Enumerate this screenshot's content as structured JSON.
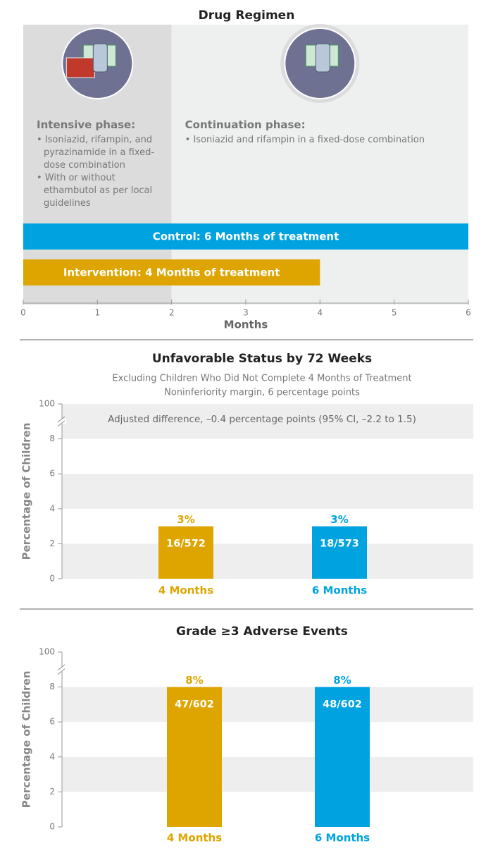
{
  "chart_data": [
    {
      "type": "timeline",
      "title": "Drug Regimen",
      "phases": [
        {
          "title": "Intensive phase:",
          "items": [
            "Isoniazid, rifampin, and pyrazinamide in a fixed-dose combination",
            "With or without ethambutol as per local guidelines"
          ],
          "start": 0,
          "end": 2,
          "color": "#dcdcdd"
        },
        {
          "title": "Continuation phase:",
          "items": [
            "Isoniazid and rifampin in a fixed-dose combination"
          ],
          "start": 2,
          "end": 6,
          "color": "#eef0ef"
        }
      ],
      "categories": [
        "Control: 6 Months of treatment",
        "Intervention: 4 Months of treatment"
      ],
      "values": [
        6,
        4
      ],
      "colors": [
        "#00a3e0",
        "#dea500"
      ],
      "xlim": [
        0,
        6
      ],
      "xticks": [
        0,
        1,
        2,
        3,
        4,
        5,
        6
      ],
      "xlabel": "Months"
    },
    {
      "type": "bar",
      "title": "Unfavorable Status by 72 Weeks",
      "subtitle": [
        "Excluding Children Who Did Not Complete 4 Months of Treatment",
        "Noninferiority margin, 6 percentage points"
      ],
      "annotation": "Adjusted difference, –0.4 percentage points (95% CI, –2.2 to 1.5)",
      "ylabel": "Percentage of Children",
      "categories": [
        "4 Months",
        "6 Months"
      ],
      "values": [
        3,
        3
      ],
      "value_labels": [
        "3%",
        "3%"
      ],
      "counts": [
        "16/572",
        "18/573"
      ],
      "colors": [
        "#dea500",
        "#00a3e0"
      ],
      "ylim": [
        0,
        100
      ],
      "yticks": [
        0,
        2,
        4,
        6,
        8,
        100
      ],
      "axis_break": true
    },
    {
      "type": "bar",
      "title": "Grade ≥3 Adverse Events",
      "ylabel": "Percentage of Children",
      "categories": [
        "4 Months",
        "6 Months"
      ],
      "values": [
        8,
        8
      ],
      "value_labels": [
        "8%",
        "8%"
      ],
      "counts": [
        "47/602",
        "48/602"
      ],
      "colors": [
        "#dea500",
        "#00a3e0"
      ],
      "ylim": [
        0,
        100
      ],
      "yticks": [
        0,
        2,
        4,
        6,
        8,
        100
      ],
      "axis_break": true
    }
  ]
}
